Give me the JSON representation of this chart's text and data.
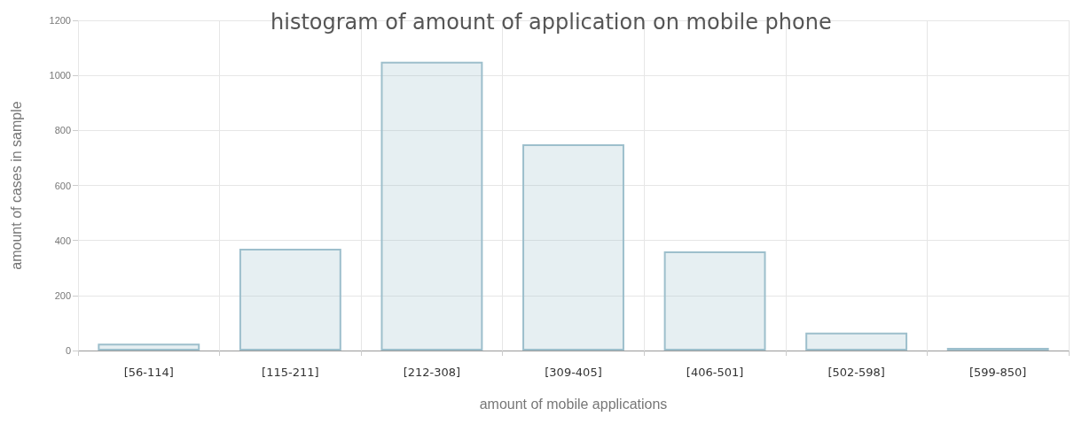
{
  "chart_data": {
    "type": "bar",
    "title": "histogram of amount of application on mobile phone",
    "xlabel": "amount of mobile applications",
    "ylabel": "amount of cases in sample",
    "categories": [
      "[56-114]",
      "[115-211]",
      "[212-308]",
      "[309-405]",
      "[406-501]",
      "[502-598]",
      "[599-850]"
    ],
    "values": [
      25,
      370,
      1050,
      750,
      360,
      65,
      10
    ],
    "color": "#9dbfcc",
    "ylim": [
      0,
      1200
    ],
    "yticks": [
      0,
      200,
      400,
      600,
      800,
      1000,
      1200
    ],
    "grid": true
  }
}
